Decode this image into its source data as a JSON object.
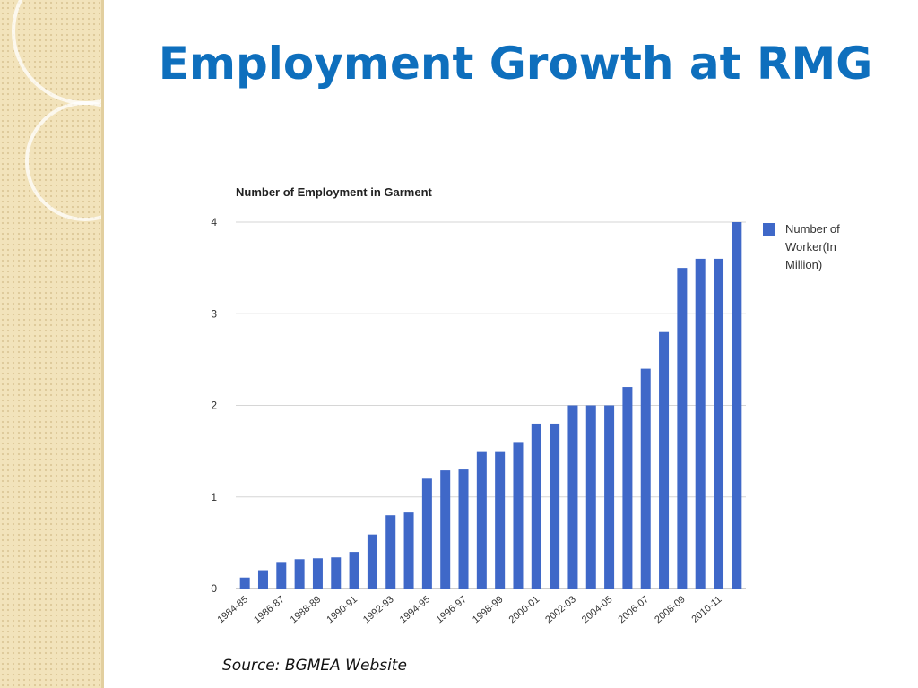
{
  "slide": {
    "title": "Employment Growth at RMG",
    "source": "Source: BGMEA Website"
  },
  "colors": {
    "title": "#0e6fbd",
    "bar": "#3f68c8",
    "gridline": "#d6d6d6",
    "side_panel": "#f2e3bb"
  },
  "chart_data": {
    "type": "bar",
    "title": "Number of Employment in Garment",
    "xlabel": "",
    "ylabel": "",
    "ylim": [
      0,
      4
    ],
    "yticks": [
      0,
      1,
      2,
      3,
      4
    ],
    "grid": true,
    "legend_position": "right",
    "x_tick_labels": [
      "1984-85",
      "1986-87",
      "1988-89",
      "1990-91",
      "1992-93",
      "1994-95",
      "1996-97",
      "1998-99",
      "2000-01",
      "2002-03",
      "2004-05",
      "2006-07",
      "2008-09",
      "2010-11"
    ],
    "series": [
      {
        "name": "Number of Worker(In Million)",
        "legend_lines": [
          "Number of",
          "Worker(In",
          "Million)"
        ],
        "color": "#3f68c8",
        "values": [
          0.12,
          0.2,
          0.29,
          0.32,
          0.33,
          0.34,
          0.4,
          0.59,
          0.8,
          0.83,
          1.2,
          1.29,
          1.3,
          1.5,
          1.5,
          1.6,
          1.8,
          1.8,
          2.0,
          2.0,
          2.0,
          2.2,
          2.4,
          2.8,
          3.5,
          3.6,
          3.6,
          4.0
        ]
      }
    ]
  }
}
